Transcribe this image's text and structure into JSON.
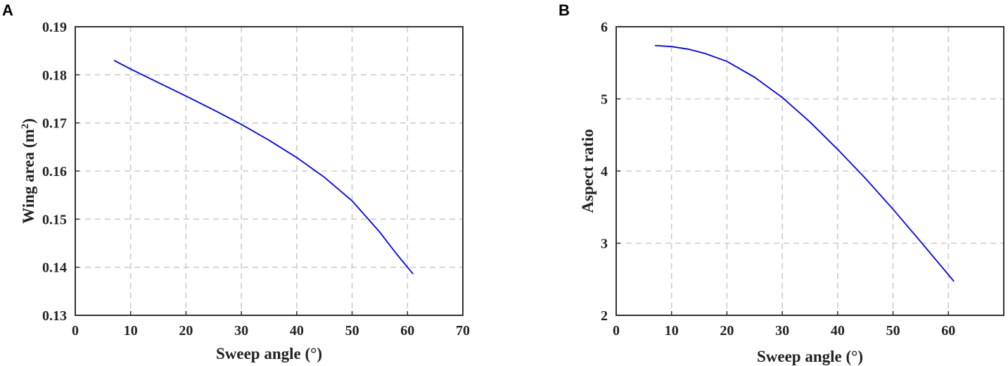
{
  "chart_data": [
    {
      "panel": "A",
      "type": "line",
      "xlabel": "Sweep angle (°)",
      "ylabel_main": "Wing area (m",
      "ylabel_sup": "2",
      "ylabel_tail": ")",
      "xlim": [
        0,
        70
      ],
      "ylim": [
        0.13,
        0.19
      ],
      "xticks": [
        0,
        10,
        20,
        30,
        40,
        50,
        60,
        70
      ],
      "yticks": [
        0.13,
        0.14,
        0.15,
        0.16,
        0.17,
        0.18,
        0.19
      ],
      "ytick_labels": [
        "0.13",
        "0.14",
        "0.15",
        "0.16",
        "0.17",
        "0.18",
        "0.19"
      ],
      "grid": true,
      "color": "#0000ee",
      "x": [
        7,
        10,
        15,
        20,
        25,
        30,
        35,
        40,
        45,
        50,
        55,
        58,
        61
      ],
      "y": [
        0.183,
        0.1812,
        0.1784,
        0.1756,
        0.1727,
        0.1697,
        0.1664,
        0.1628,
        0.1587,
        0.1538,
        0.1473,
        0.1428,
        0.1386
      ]
    },
    {
      "panel": "B",
      "type": "line",
      "xlabel": "Sweep angle (°)",
      "ylabel_main": "Aspect ratio",
      "ylabel_sup": "",
      "ylabel_tail": "",
      "xlim": [
        0,
        70
      ],
      "ylim": [
        2,
        6
      ],
      "xticks": [
        0,
        10,
        20,
        30,
        40,
        50,
        60
      ],
      "yticks": [
        2,
        3,
        4,
        5,
        6
      ],
      "ytick_labels": [
        "2",
        "3",
        "4",
        "5",
        "6"
      ],
      "grid": true,
      "color": "#0000ee",
      "x": [
        7,
        10,
        13,
        16,
        20,
        25,
        30,
        35,
        40,
        45,
        50,
        55,
        61
      ],
      "y": [
        5.74,
        5.725,
        5.69,
        5.63,
        5.52,
        5.3,
        5.02,
        4.68,
        4.3,
        3.9,
        3.47,
        3.02,
        2.47
      ]
    }
  ]
}
